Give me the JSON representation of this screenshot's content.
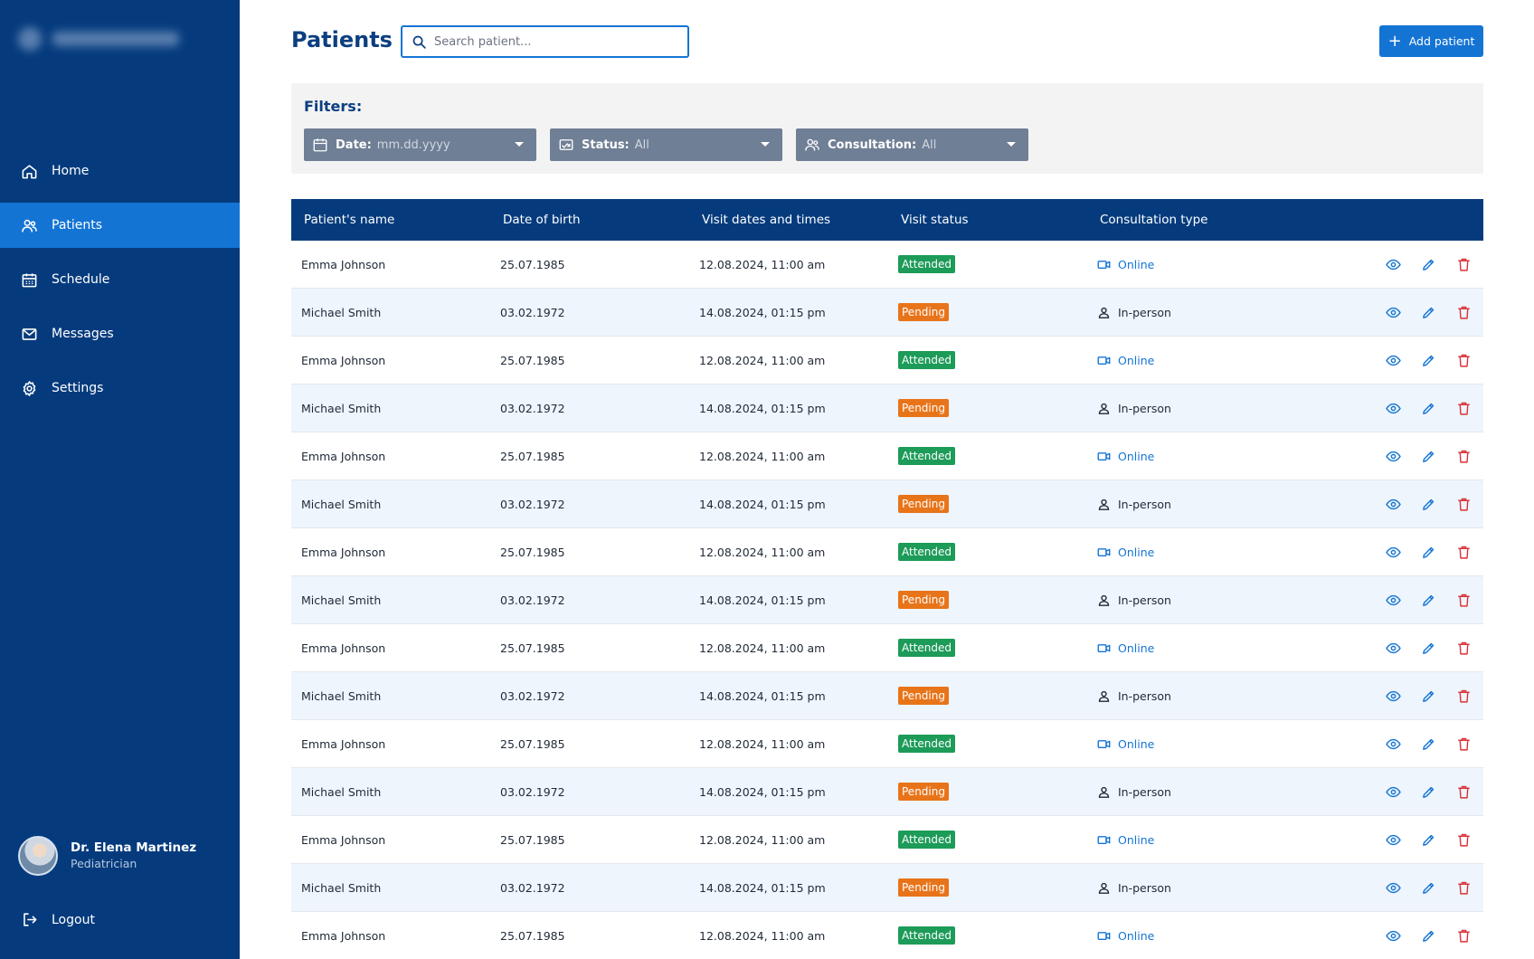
{
  "sidebar": {
    "nav": [
      {
        "label": "Home",
        "icon": "home-icon"
      },
      {
        "label": "Patients",
        "icon": "users-icon",
        "active": true
      },
      {
        "label": "Schedule",
        "icon": "calendar-icon"
      },
      {
        "label": "Messages",
        "icon": "mail-icon"
      },
      {
        "label": "Settings",
        "icon": "gear-icon"
      }
    ],
    "profile": {
      "name": "Dr. Elena Martinez",
      "role": "Pediatrician"
    },
    "logout_label": "Logout"
  },
  "header": {
    "title": "Patients",
    "search_placeholder": "Search patient...",
    "add_label": "Add patient"
  },
  "filters": {
    "label": "Filters:",
    "date": {
      "key": "Date:",
      "value": "mm.dd.yyyy"
    },
    "status": {
      "key": "Status:",
      "value": "All"
    },
    "consultation": {
      "key": "Consultation:",
      "value": "All"
    }
  },
  "table": {
    "headers": [
      "Patient's name",
      "Date of birth",
      "Visit dates and times",
      "Visit status",
      "Consultation type"
    ],
    "rows": [
      {
        "name": "Emma Johnson",
        "dob": "25.07.1985",
        "visit": "12.08.2024, 11:00 am",
        "status": "Attended",
        "type": "Online"
      },
      {
        "name": "Michael Smith",
        "dob": "03.02.1972",
        "visit": "14.08.2024, 01:15 pm",
        "status": "Pending",
        "type": "In-person"
      },
      {
        "name": "Emma Johnson",
        "dob": "25.07.1985",
        "visit": "12.08.2024, 11:00 am",
        "status": "Attended",
        "type": "Online"
      },
      {
        "name": "Michael Smith",
        "dob": "03.02.1972",
        "visit": "14.08.2024, 01:15 pm",
        "status": "Pending",
        "type": "In-person"
      },
      {
        "name": "Emma Johnson",
        "dob": "25.07.1985",
        "visit": "12.08.2024, 11:00 am",
        "status": "Attended",
        "type": "Online"
      },
      {
        "name": "Michael Smith",
        "dob": "03.02.1972",
        "visit": "14.08.2024, 01:15 pm",
        "status": "Pending",
        "type": "In-person"
      },
      {
        "name": "Emma Johnson",
        "dob": "25.07.1985",
        "visit": "12.08.2024, 11:00 am",
        "status": "Attended",
        "type": "Online"
      },
      {
        "name": "Michael Smith",
        "dob": "03.02.1972",
        "visit": "14.08.2024, 01:15 pm",
        "status": "Pending",
        "type": "In-person"
      },
      {
        "name": "Emma Johnson",
        "dob": "25.07.1985",
        "visit": "12.08.2024, 11:00 am",
        "status": "Attended",
        "type": "Online"
      },
      {
        "name": "Michael Smith",
        "dob": "03.02.1972",
        "visit": "14.08.2024, 01:15 pm",
        "status": "Pending",
        "type": "In-person"
      },
      {
        "name": "Emma Johnson",
        "dob": "25.07.1985",
        "visit": "12.08.2024, 11:00 am",
        "status": "Attended",
        "type": "Online"
      },
      {
        "name": "Michael Smith",
        "dob": "03.02.1972",
        "visit": "14.08.2024, 01:15 pm",
        "status": "Pending",
        "type": "In-person"
      },
      {
        "name": "Emma Johnson",
        "dob": "25.07.1985",
        "visit": "12.08.2024, 11:00 am",
        "status": "Attended",
        "type": "Online"
      },
      {
        "name": "Michael Smith",
        "dob": "03.02.1972",
        "visit": "14.08.2024, 01:15 pm",
        "status": "Pending",
        "type": "In-person"
      },
      {
        "name": "Emma Johnson",
        "dob": "25.07.1985",
        "visit": "12.08.2024, 11:00 am",
        "status": "Attended",
        "type": "Online"
      }
    ]
  },
  "colors": {
    "sidebar": "#053b7d",
    "accent": "#1474d4",
    "attended": "#1d9b58",
    "pending": "#e8741a",
    "delete": "#d9333a"
  }
}
